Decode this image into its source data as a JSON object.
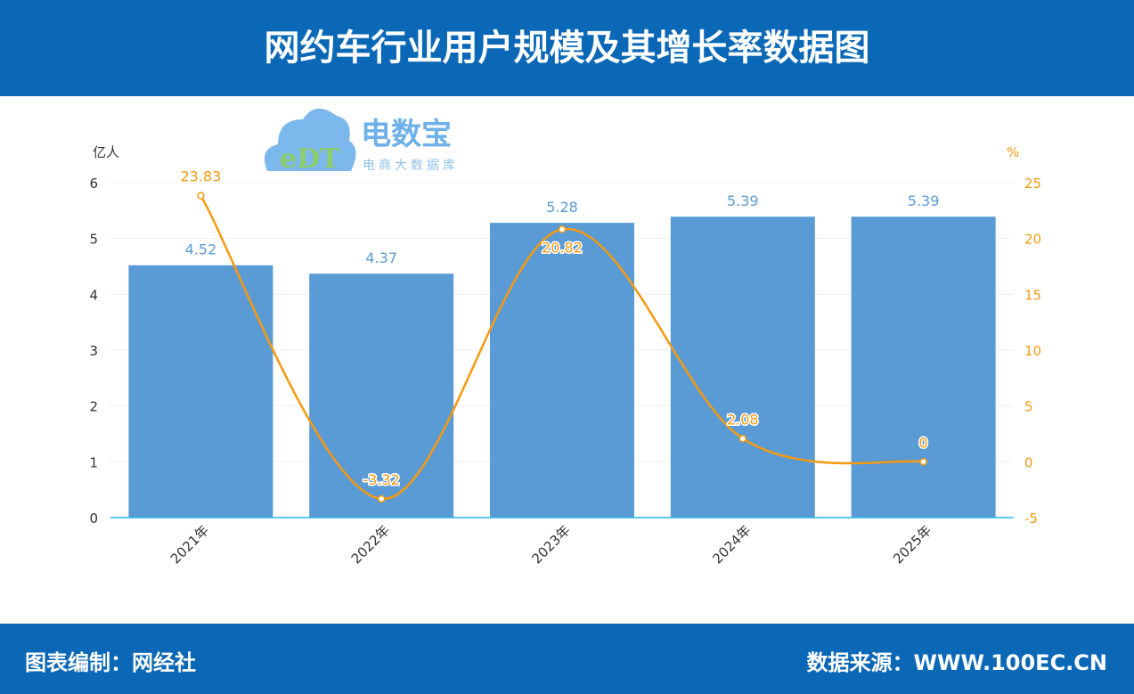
{
  "title": "网约车行业用户规模及其增长率数据图",
  "footer": {
    "left": "图表编制：网经社",
    "right": "数据来源：WWW.100EC.CN"
  },
  "logo": {
    "brand": "电数宝",
    "sub": "电商大数据库",
    "mark": "eDT"
  },
  "colors": {
    "bar": "#5b9bd5",
    "line": "#f59a10",
    "header": "#0b68b6",
    "axis": "#2bb5e8"
  },
  "chart_data": {
    "type": "bar+line",
    "categories": [
      "2021年",
      "2022年",
      "2023年",
      "2024年",
      "2025年"
    ],
    "series": [
      {
        "type": "bar",
        "axis": "left",
        "values": [
          4.52,
          4.37,
          5.28,
          5.39,
          5.39
        ]
      },
      {
        "type": "line",
        "axis": "right",
        "smooth": true,
        "values": [
          23.83,
          -3.32,
          20.82,
          2.08,
          0
        ]
      }
    ],
    "ylabel_left": "亿人",
    "ylabel_right": "%",
    "ylim_left": [
      0,
      6
    ],
    "yticks_left": [
      0,
      1,
      2,
      3,
      4,
      5,
      6
    ],
    "ylim_right": [
      -5,
      25
    ],
    "yticks_right": [
      -5,
      0,
      5,
      10,
      15,
      20,
      25
    ],
    "grid": true
  }
}
